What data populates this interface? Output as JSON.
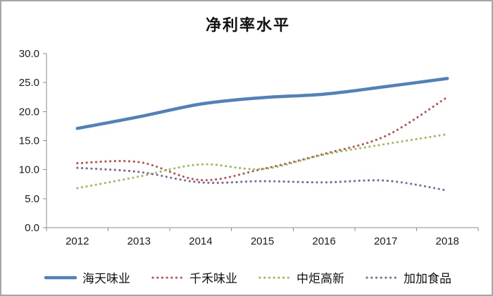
{
  "window": {
    "background": "#ffffff",
    "border_color": "#a6a6a6"
  },
  "title": "净利率水平",
  "chart_data": {
    "type": "line",
    "title": "净利率水平",
    "categories": [
      "2012",
      "2013",
      "2014",
      "2015",
      "2016",
      "2017",
      "2018"
    ],
    "series": [
      {
        "name": "海天味业",
        "color": "#4f81bd",
        "style": "solid",
        "values": [
          17.1,
          19.1,
          21.3,
          22.4,
          23.0,
          24.3,
          25.7
        ]
      },
      {
        "name": "千禾味业",
        "color": "#c0504d",
        "style": "dotted",
        "values": [
          11.1,
          11.3,
          8.2,
          10.1,
          12.7,
          15.8,
          22.5
        ]
      },
      {
        "name": "中炬高新",
        "color": "#9bbb59",
        "style": "dotted",
        "values": [
          6.8,
          8.8,
          10.9,
          10.1,
          12.6,
          14.4,
          16.1
        ]
      },
      {
        "name": "加加食品",
        "color": "#8064a2",
        "style": "dotted",
        "values": [
          10.3,
          9.6,
          7.8,
          8.0,
          7.8,
          8.1,
          6.4
        ]
      }
    ],
    "ylim": [
      0,
      30
    ],
    "ytick_step": 5,
    "ytick_labels": [
      "0.0",
      "5.0",
      "10.0",
      "15.0",
      "20.0",
      "25.0",
      "30.0"
    ],
    "grid": false,
    "legend_position": "bottom",
    "axis_color": "#8c8c8c",
    "label_color": "#1a1a1a"
  }
}
